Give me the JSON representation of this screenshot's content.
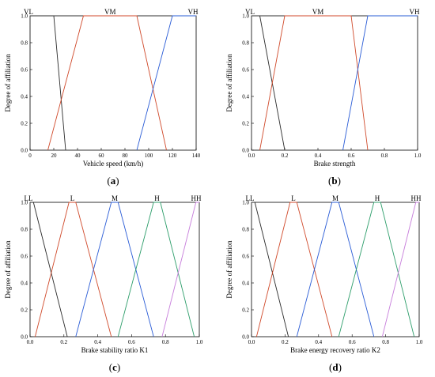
{
  "y_axis_title": "Degree of affiliation",
  "chart_data": [
    {
      "type": "line",
      "panel_label": "a",
      "xlabel": "Vehicle speed (km/h)",
      "ylabel": "Degree of affiliation",
      "xlim": [
        0,
        140
      ],
      "ylim": [
        0,
        1.0
      ],
      "xticks": [
        0,
        20,
        40,
        60,
        80,
        100,
        120,
        140
      ],
      "yticks": [
        0.0,
        0.2,
        0.4,
        0.6,
        0.8,
        1.0
      ],
      "series": [
        {
          "name": "VL",
          "color": "#2b2b2b",
          "x": [
            0,
            20,
            30
          ],
          "y": [
            1,
            1,
            0
          ]
        },
        {
          "name": "VM",
          "color": "#d04a2b",
          "x": [
            15,
            45,
            90,
            115
          ],
          "y": [
            0,
            1,
            1,
            0
          ]
        },
        {
          "name": "VH",
          "color": "#2a5cd6",
          "x": [
            90,
            120,
            140
          ],
          "y": [
            0,
            1,
            1
          ]
        }
      ]
    },
    {
      "type": "line",
      "panel_label": "b",
      "xlabel": "Brake strength",
      "ylabel": "Degree of affiliation",
      "xlim": [
        0,
        1.0
      ],
      "ylim": [
        0,
        1.0
      ],
      "xticks": [
        0.0,
        0.2,
        0.4,
        0.6,
        0.8,
        1.0
      ],
      "yticks": [
        0.0,
        0.2,
        0.4,
        0.6,
        0.8,
        1.0
      ],
      "series": [
        {
          "name": "VL",
          "color": "#2b2b2b",
          "x": [
            0,
            0.05,
            0.2
          ],
          "y": [
            1,
            1,
            0
          ]
        },
        {
          "name": "VM",
          "color": "#d04a2b",
          "x": [
            0.05,
            0.2,
            0.6,
            0.7
          ],
          "y": [
            0,
            1,
            1,
            0
          ]
        },
        {
          "name": "VH",
          "color": "#2a5cd6",
          "x": [
            0.55,
            0.7,
            1.0
          ],
          "y": [
            0,
            1,
            1
          ]
        }
      ]
    },
    {
      "type": "line",
      "panel_label": "c",
      "xlabel": "Brake stability ratio K1",
      "ylabel": "Degree of affiliation",
      "xlim": [
        0,
        1.0
      ],
      "ylim": [
        0,
        1.0
      ],
      "xticks": [
        0.0,
        0.2,
        0.4,
        0.6,
        0.8,
        1.0
      ],
      "yticks": [
        0.0,
        0.2,
        0.4,
        0.6,
        0.8,
        1.0
      ],
      "series": [
        {
          "name": "LL",
          "color": "#2b2b2b",
          "x": [
            0,
            0.02,
            0.22
          ],
          "y": [
            1,
            1,
            0
          ]
        },
        {
          "name": "L",
          "color": "#d04a2b",
          "x": [
            0.03,
            0.23,
            0.27,
            0.48
          ],
          "y": [
            0,
            1,
            1,
            0
          ]
        },
        {
          "name": "M",
          "color": "#2a5cd6",
          "x": [
            0.27,
            0.48,
            0.52,
            0.73
          ],
          "y": [
            0,
            1,
            1,
            0
          ]
        },
        {
          "name": "H",
          "color": "#2e9e6b",
          "x": [
            0.52,
            0.73,
            0.77,
            0.97
          ],
          "y": [
            0,
            1,
            1,
            0
          ]
        },
        {
          "name": "HH",
          "color": "#c77ddb",
          "x": [
            0.78,
            0.98,
            1.0
          ],
          "y": [
            0,
            1,
            1
          ]
        }
      ]
    },
    {
      "type": "line",
      "panel_label": "d",
      "xlabel": "Brake energy recovery ratio K2",
      "ylabel": "Degree of affiliation",
      "xlim": [
        0,
        1.0
      ],
      "ylim": [
        0,
        1.0
      ],
      "xticks": [
        0.0,
        0.2,
        0.4,
        0.6,
        0.8,
        1.0
      ],
      "yticks": [
        0.0,
        0.2,
        0.4,
        0.6,
        0.8,
        1.0
      ],
      "series": [
        {
          "name": "LL",
          "color": "#2b2b2b",
          "x": [
            0,
            0.02,
            0.22
          ],
          "y": [
            1,
            1,
            0
          ]
        },
        {
          "name": "L",
          "color": "#d04a2b",
          "x": [
            0.03,
            0.23,
            0.27,
            0.48
          ],
          "y": [
            0,
            1,
            1,
            0
          ]
        },
        {
          "name": "M",
          "color": "#2a5cd6",
          "x": [
            0.27,
            0.48,
            0.52,
            0.73
          ],
          "y": [
            0,
            1,
            1,
            0
          ]
        },
        {
          "name": "H",
          "color": "#2e9e6b",
          "x": [
            0.52,
            0.73,
            0.77,
            0.97
          ],
          "y": [
            0,
            1,
            1,
            0
          ]
        },
        {
          "name": "HH",
          "color": "#c77ddb",
          "x": [
            0.78,
            0.98,
            1.0
          ],
          "y": [
            0,
            1,
            1
          ]
        }
      ]
    }
  ]
}
